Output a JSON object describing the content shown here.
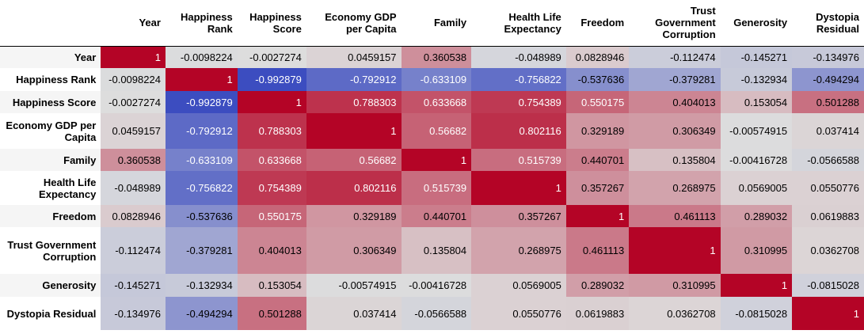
{
  "chart_data": {
    "type": "heatmap",
    "variables": [
      "Year",
      "Happiness Rank",
      "Happiness Score",
      "Economy GDP per Capita",
      "Family",
      "Health Life Expectancy",
      "Freedom",
      "Trust Government Corruption",
      "Generosity",
      "Dystopia Residual"
    ],
    "values": [
      [
        "1",
        "-0.0098224",
        "-0.0027274",
        "0.0459157",
        "0.360538",
        "-0.048989",
        "0.0828946",
        "-0.112474",
        "-0.145271",
        "-0.134976"
      ],
      [
        "-0.0098224",
        "1",
        "-0.992879",
        "-0.792912",
        "-0.633109",
        "-0.756822",
        "-0.537636",
        "-0.379281",
        "-0.132934",
        "-0.494294"
      ],
      [
        "-0.0027274",
        "-0.992879",
        "1",
        "0.788303",
        "0.633668",
        "0.754389",
        "0.550175",
        "0.404013",
        "0.153054",
        "0.501288"
      ],
      [
        "0.0459157",
        "-0.792912",
        "0.788303",
        "1",
        "0.56682",
        "0.802116",
        "0.329189",
        "0.306349",
        "-0.00574915",
        "0.037414"
      ],
      [
        "0.360538",
        "-0.633109",
        "0.633668",
        "0.56682",
        "1",
        "0.515739",
        "0.440701",
        "0.135804",
        "-0.00416728",
        "-0.0566588"
      ],
      [
        "-0.048989",
        "-0.756822",
        "0.754389",
        "0.802116",
        "0.515739",
        "1",
        "0.357267",
        "0.268975",
        "0.0569005",
        "0.0550776"
      ],
      [
        "0.0828946",
        "-0.537636",
        "0.550175",
        "0.329189",
        "0.440701",
        "0.357267",
        "1",
        "0.461113",
        "0.289032",
        "0.0619883"
      ],
      [
        "-0.112474",
        "-0.379281",
        "0.404013",
        "0.306349",
        "0.135804",
        "0.268975",
        "0.461113",
        "1",
        "0.310995",
        "0.0362708"
      ],
      [
        "-0.145271",
        "-0.132934",
        "0.153054",
        "-0.00574915",
        "-0.00416728",
        "0.0569005",
        "0.289032",
        "0.310995",
        "1",
        "-0.0815028"
      ],
      [
        "-0.134976",
        "-0.494294",
        "0.501288",
        "0.037414",
        "-0.0566588",
        "0.0550776",
        "0.0619883",
        "0.0362708",
        "-0.0815028",
        "1"
      ]
    ],
    "colormap": "coolwarm",
    "colors": {
      "low": "#3b4cc0",
      "mid": "#dddddd",
      "high": "#b40426",
      "light_text": "#ffffff",
      "dark_text": "#000000"
    }
  }
}
